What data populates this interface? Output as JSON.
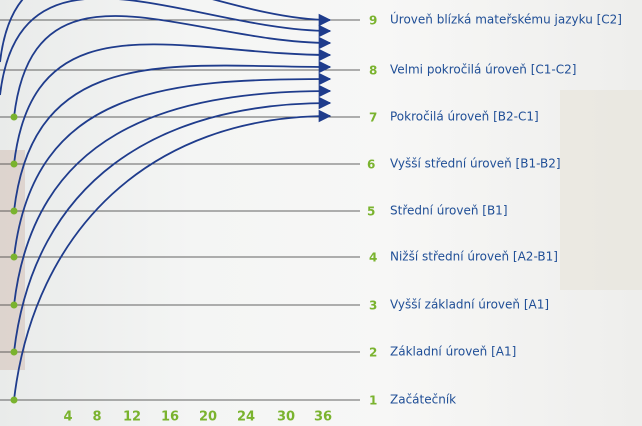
{
  "levels": [
    {
      "number": 1,
      "label": "Začátečník"
    },
    {
      "number": 2,
      "label": "Základní úroveň [A1]"
    },
    {
      "number": 3,
      "label": "Vyšší základní úroveň [A1]"
    },
    {
      "number": 4,
      "label": "Nižší střední úroveň [A2-B1]"
    },
    {
      "number": 5,
      "label": "Střední úroveň [B1]"
    },
    {
      "number": 6,
      "label": "Vyšší střední úroveň [B1-B2]"
    },
    {
      "number": 7,
      "label": "Pokročilá úroveň [B2-C1]"
    },
    {
      "number": 8,
      "label": "Velmi pokročilá úroveň [C1-C2]"
    },
    {
      "number": 9,
      "label": "Úroveň blízká mateřskému jazyku [C2]"
    }
  ],
  "x_labels": [
    4,
    8,
    12,
    16,
    20,
    24,
    30,
    36
  ]
}
